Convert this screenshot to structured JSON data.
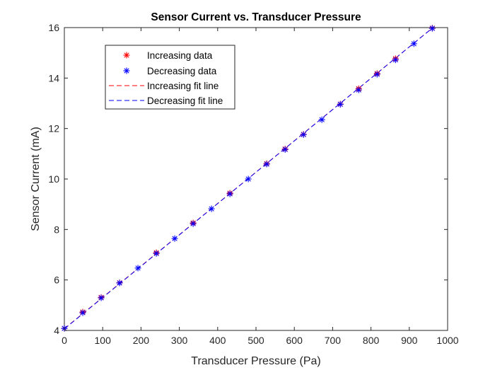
{
  "chart_data": {
    "type": "scatter",
    "title": "Sensor Current vs. Transducer Pressure",
    "xlabel": "Transducer Pressure (Pa)",
    "ylabel": "Sensor Current (mA)",
    "xlim": [
      0,
      1000
    ],
    "ylim": [
      4,
      16
    ],
    "xticks": [
      0,
      100,
      200,
      300,
      400,
      500,
      600,
      700,
      800,
      900,
      1000
    ],
    "yticks": [
      4,
      6,
      8,
      10,
      12,
      14,
      16
    ],
    "grid": false,
    "legend_position": "top-left",
    "series": [
      {
        "name": "Increasing data",
        "kind": "points",
        "marker": "asterisk",
        "color": "#ff0000",
        "x": [
          0,
          48,
          96,
          144,
          240,
          336,
          432,
          528,
          576,
          624,
          720,
          768,
          816,
          864,
          960
        ],
        "y": [
          4.08,
          4.73,
          5.31,
          5.89,
          7.08,
          8.26,
          9.44,
          10.61,
          11.19,
          11.77,
          12.97,
          13.58,
          14.18,
          14.77,
          15.98
        ]
      },
      {
        "name": "Decreasing data",
        "kind": "points",
        "marker": "asterisk",
        "color": "#0000ff",
        "x": [
          0,
          48,
          96,
          144,
          192,
          240,
          288,
          336,
          384,
          432,
          480,
          528,
          576,
          624,
          672,
          720,
          768,
          816,
          864,
          912,
          960
        ],
        "y": [
          4.08,
          4.7,
          5.29,
          5.88,
          6.47,
          7.05,
          7.64,
          8.23,
          8.82,
          9.41,
          10.0,
          10.59,
          11.17,
          11.76,
          12.35,
          12.96,
          13.53,
          14.15,
          14.72,
          15.36,
          15.97
        ]
      },
      {
        "name": "Increasing fit line",
        "kind": "line",
        "style": "dashed",
        "color": "#ff0000",
        "x": [
          0,
          960
        ],
        "y": [
          4.07,
          15.98
        ]
      },
      {
        "name": "Decreasing fit line",
        "kind": "line",
        "style": "dashed",
        "color": "#0000ff",
        "x": [
          0,
          960
        ],
        "y": [
          4.06,
          15.98
        ]
      }
    ]
  }
}
